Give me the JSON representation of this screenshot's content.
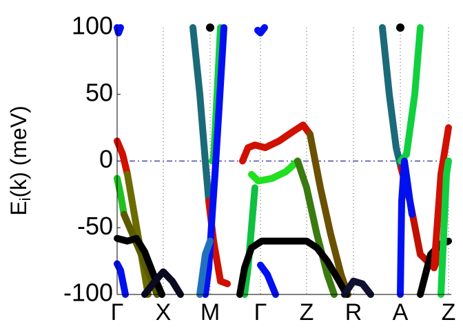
{
  "chart_data": {
    "type": "line",
    "ylabel": {
      "main": "E",
      "sub": "i",
      "rest": "(k) (meV)"
    },
    "xlim": [
      0,
      485
    ],
    "ylim": [
      -100,
      100
    ],
    "xticks": [
      {
        "value": 0,
        "label": "Γ"
      },
      {
        "value": 67,
        "label": "X"
      },
      {
        "value": 135,
        "label": "M"
      },
      {
        "value": 208,
        "label": "Γ"
      },
      {
        "value": 275,
        "label": "Z"
      },
      {
        "value": 343,
        "label": "R"
      },
      {
        "value": 411,
        "label": "A"
      },
      {
        "value": 481,
        "label": "Z"
      }
    ],
    "yticks": [
      100,
      50,
      0,
      -50,
      -100
    ],
    "grid": true,
    "hline": 0,
    "series": [
      {
        "color": "#d01000",
        "x": [
          0,
          8,
          15
        ],
        "values": [
          15,
          5,
          -10
        ]
      },
      {
        "color": "#6b6b00",
        "x": [
          15,
          30,
          45
        ],
        "values": [
          -10,
          -55,
          -100
        ]
      },
      {
        "color": "#20c020",
        "x": [
          0,
          5,
          10
        ],
        "values": [
          -13,
          -25,
          -40
        ]
      },
      {
        "color": "#5a5a00",
        "x": [
          10,
          35,
          58
        ],
        "values": [
          -40,
          -70,
          -100
        ]
      },
      {
        "color": "#000000",
        "x": [
          0,
          15,
          28,
          40,
          55,
          65
        ],
        "values": [
          -58,
          -60,
          -58,
          -68,
          -88,
          -100
        ]
      },
      {
        "color": "#0a0a20",
        "x": [
          40,
          55,
          67,
          80,
          92
        ],
        "values": [
          -100,
          -90,
          -83,
          -90,
          -100
        ]
      },
      {
        "color": "#0010f0",
        "x": [
          0,
          5,
          12
        ],
        "values": [
          -77,
          -82,
          -100
        ]
      },
      {
        "color": "#0010f0",
        "x": [
          0,
          2,
          5
        ],
        "values": [
          100,
          96,
          100
        ]
      },
      {
        "color": "#1a6a7a",
        "x": [
          110,
          120,
          128,
          133
        ],
        "values": [
          100,
          50,
          0,
          -30
        ]
      },
      {
        "color": "#d01000",
        "x": [
          133,
          140,
          150,
          160
        ],
        "values": [
          -30,
          -60,
          -90,
          -92
        ]
      },
      {
        "color": "#10d040",
        "x": [
          150,
          146,
          142,
          140,
          138
        ],
        "values": [
          100,
          60,
          20,
          2,
          0
        ]
      },
      {
        "color": "#0010f0",
        "x": [
          155,
          148,
          142,
          138,
          133,
          128
        ],
        "values": [
          100,
          40,
          -10,
          -40,
          -80,
          -100
        ]
      },
      {
        "color": "#2070c0",
        "x": [
          120,
          128,
          135
        ],
        "values": [
          -100,
          -70,
          -60
        ]
      },
      {
        "color": "#d01000",
        "x": [
          182,
          190,
          200,
          215,
          235,
          255,
          270,
          280
        ],
        "values": [
          0,
          10,
          12,
          10,
          15,
          22,
          27,
          20
        ]
      },
      {
        "color": "#6a5000",
        "x": [
          280,
          295,
          310,
          325,
          335
        ],
        "values": [
          20,
          -20,
          -55,
          -85,
          -100
        ]
      },
      {
        "color": "#20e020",
        "x": [
          195,
          205,
          225,
          245,
          262
        ],
        "values": [
          -10,
          -15,
          -13,
          -8,
          0
        ]
      },
      {
        "color": "#3a7a10",
        "x": [
          262,
          275,
          290,
          305,
          315
        ],
        "values": [
          0,
          -20,
          -55,
          -85,
          -100
        ]
      },
      {
        "color": "#10c040",
        "x": [
          200,
          195,
          190,
          185
        ],
        "values": [
          -20,
          -50,
          -80,
          -100
        ]
      },
      {
        "color": "#000000",
        "x": [
          178,
          185,
          195,
          210,
          275,
          290,
          305,
          320,
          333
        ],
        "values": [
          -100,
          -80,
          -65,
          -60,
          -60,
          -65,
          -75,
          -88,
          -100
        ]
      },
      {
        "color": "#101030",
        "x": [
          330,
          343,
          356,
          368
        ],
        "values": [
          -100,
          -90,
          -92,
          -100
        ]
      },
      {
        "color": "#0010f0",
        "x": [
          208,
          218,
          230
        ],
        "values": [
          -78,
          -85,
          -100
        ]
      },
      {
        "color": "#0010f0",
        "x": [
          204,
          208,
          214
        ],
        "values": [
          98,
          96,
          100
        ]
      },
      {
        "color": "#1a6a7a",
        "x": [
          385,
          395,
          405,
          412
        ],
        "values": [
          100,
          50,
          10,
          -5
        ]
      },
      {
        "color": "#c01000",
        "x": [
          412,
          425,
          440,
          460,
          475
        ],
        "values": [
          -5,
          -30,
          -70,
          -80,
          -60
        ]
      },
      {
        "color": "#10d040",
        "x": [
          440,
          432,
          420,
          412
        ],
        "values": [
          100,
          50,
          5,
          0
        ]
      },
      {
        "color": "#0010f0",
        "x": [
          411,
          413,
          417,
          425,
          428
        ],
        "values": [
          -100,
          -30,
          0,
          -30,
          -40
        ]
      },
      {
        "color": "#000000",
        "x": [
          440,
          455,
          470,
          481
        ],
        "values": [
          -100,
          -70,
          -62,
          -60
        ]
      },
      {
        "color": "#d01000",
        "x": [
          460,
          470,
          481
        ],
        "values": [
          -80,
          -10,
          25
        ]
      },
      {
        "color": "#10d040",
        "x": [
          470,
          478,
          481
        ],
        "values": [
          -100,
          -10,
          0
        ]
      },
      {
        "color": "#000000",
        "x": [
          135
        ],
        "values": [
          100
        ]
      },
      {
        "color": "#000000",
        "x": [
          411
        ],
        "values": [
          100
        ]
      }
    ]
  }
}
